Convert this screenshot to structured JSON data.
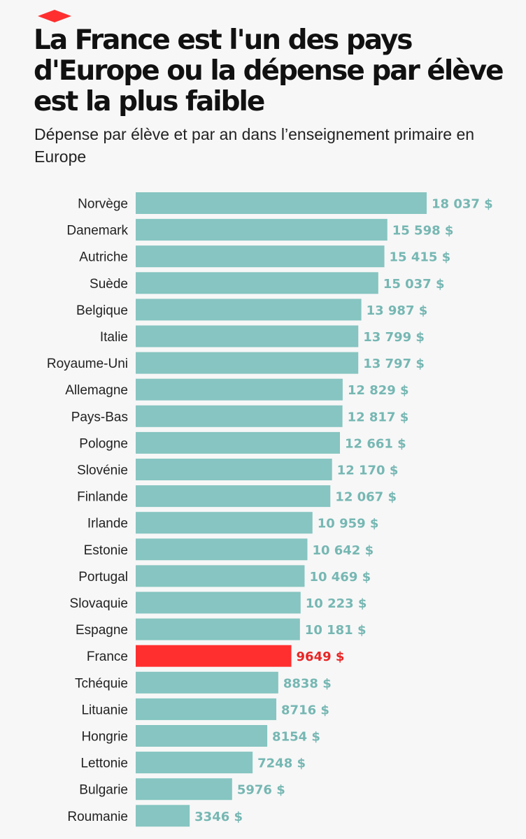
{
  "header": {
    "title": "La France est l'un des pays d'Europe ou la dépense par élève est la plus faible",
    "subtitle": "Dépense par élève et par an dans l’enseignement primaire en Europe"
  },
  "colors": {
    "bar": "#86c5c1",
    "highlight": "#ff2f2f",
    "value_label": "#76b7b3",
    "highlight_label": "#e82525",
    "logo": "#ff2f2f"
  },
  "chart_data": {
    "type": "bar",
    "orientation": "horizontal",
    "highlight": "France",
    "categories": [
      "Norvège",
      "Danemark",
      "Autriche",
      "Suède",
      "Belgique",
      "Italie",
      "Royaume-Uni",
      "Allemagne",
      "Pays-Bas",
      "Pologne",
      "Slovénie",
      "Finlande",
      "Irlande",
      "Estonie",
      "Portugal",
      "Slovaquie",
      "Espagne",
      "France",
      "Tchéquie",
      "Lituanie",
      "Hongrie",
      "Lettonie",
      "Bulgarie",
      "Roumanie"
    ],
    "values": [
      18037,
      15598,
      15415,
      15037,
      13987,
      13799,
      13797,
      12829,
      12817,
      12661,
      12170,
      12067,
      10959,
      10642,
      10469,
      10223,
      10181,
      9649,
      8838,
      8716,
      8154,
      7248,
      5976,
      3346
    ],
    "value_labels": [
      "18 037 $",
      "15 598 $",
      "15 415 $",
      "15 037 $",
      "13 987 $",
      "13 799 $",
      "13 797 $",
      "12 829 $",
      "12 817 $",
      "12 661 $",
      "12 170 $",
      "12 067 $",
      "10 959 $",
      "10 642 $",
      "10 469 $",
      "10 223 $",
      "10 181 $",
      "9649 $",
      "8838 $",
      "8716 $",
      "8154 $",
      "7248 $",
      "5976 $",
      "3346 $"
    ],
    "unit": "$",
    "xlim": [
      0,
      18037
    ],
    "grid": false,
    "legend": "none"
  }
}
